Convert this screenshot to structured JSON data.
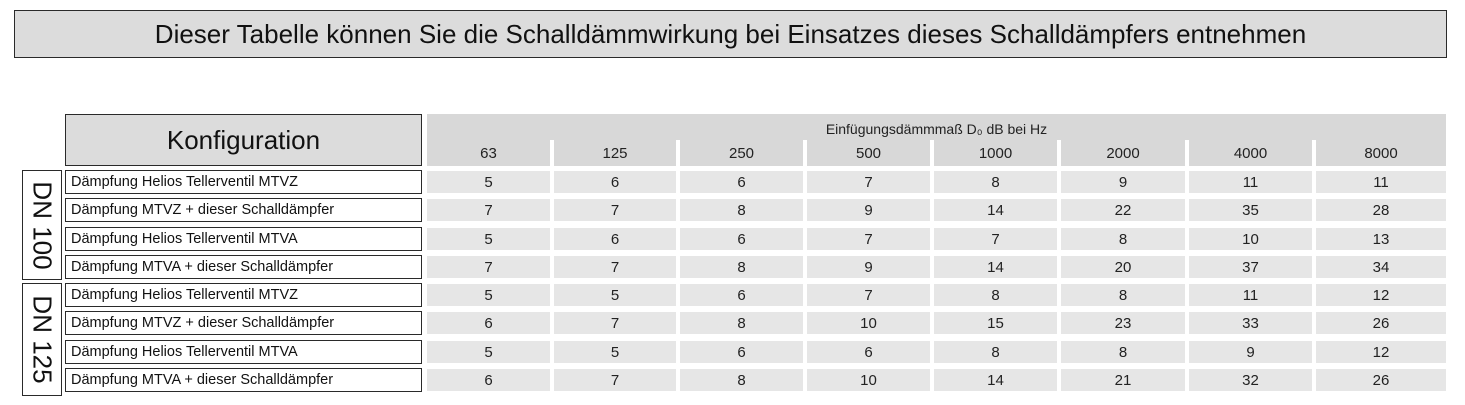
{
  "title": "Dieser Tabelle können Sie die Schalldämmwirkung bei Einsatzes dieses Schalldämpfers entnehmen",
  "konfiguration_header": "Konfiguration",
  "frequency_caption": "Einfügungsdämmmaß D₀ dB bei Hz",
  "frequencies": [
    "63",
    "125",
    "250",
    "500",
    "1000",
    "2000",
    "4000",
    "8000"
  ],
  "groups": [
    {
      "label": "DN 100",
      "rows": [
        {
          "label": "Dämpfung Helios Tellerventil MTVZ",
          "values": [
            "5",
            "6",
            "6",
            "7",
            "8",
            "9",
            "11",
            "11"
          ]
        },
        {
          "label": "Dämpfung MTVZ + dieser Schalldämpfer",
          "values": [
            "7",
            "7",
            "8",
            "9",
            "14",
            "22",
            "35",
            "28"
          ]
        },
        {
          "label": "Dämpfung Helios Tellerventil MTVA",
          "values": [
            "5",
            "6",
            "6",
            "7",
            "7",
            "8",
            "10",
            "13"
          ]
        },
        {
          "label": "Dämpfung MTVA  + dieser Schalldämpfer",
          "values": [
            "7",
            "7",
            "8",
            "9",
            "14",
            "20",
            "37",
            "34"
          ]
        }
      ]
    },
    {
      "label": "DN 125",
      "rows": [
        {
          "label": "Dämpfung Helios Tellerventil MTVZ",
          "values": [
            "5",
            "5",
            "6",
            "7",
            "8",
            "8",
            "11",
            "12"
          ]
        },
        {
          "label": "Dämpfung MTVZ + dieser Schalldämpfer",
          "values": [
            "6",
            "7",
            "8",
            "10",
            "15",
            "23",
            "33",
            "26"
          ]
        },
        {
          "label": "Dämpfung Helios Tellerventil MTVA",
          "values": [
            "5",
            "5",
            "6",
            "6",
            "8",
            "8",
            "9",
            "12"
          ]
        },
        {
          "label": "Dämpfung MTVA  + dieser Schalldämpfer",
          "values": [
            "6",
            "7",
            "8",
            "10",
            "14",
            "21",
            "32",
            "26"
          ]
        }
      ]
    }
  ]
}
